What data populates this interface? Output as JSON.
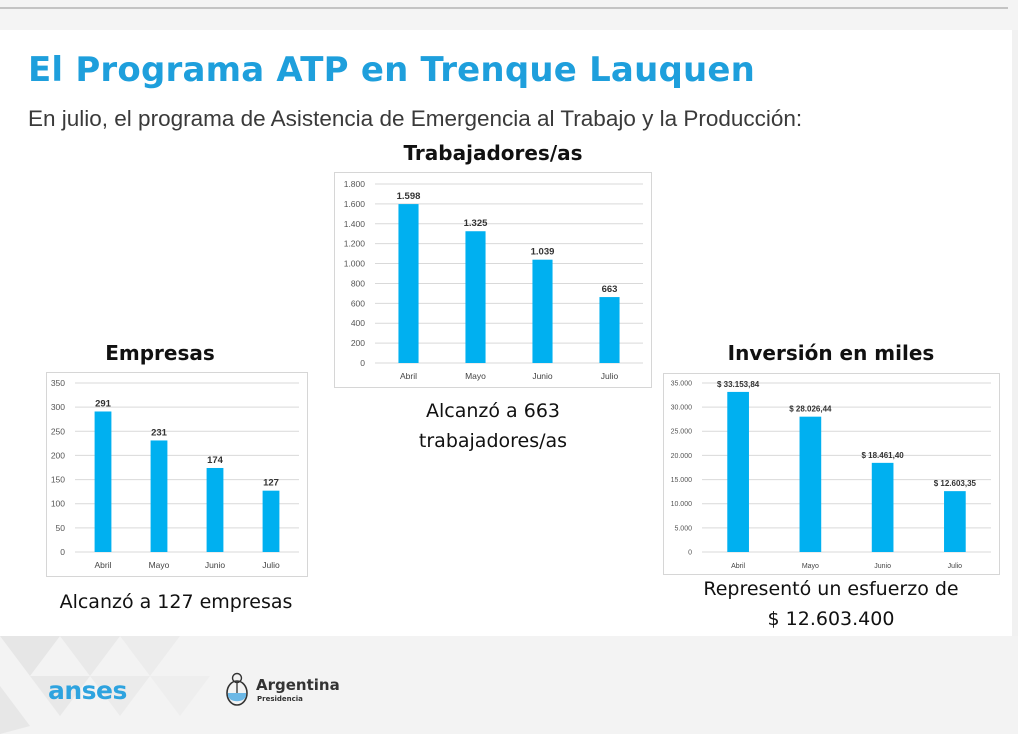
{
  "slide": {
    "title": "El Programa ATP en Trenque Lauquen",
    "subtitle": "En julio, el programa de Asistencia de Emergencia al Trabajo y la Producción:"
  },
  "captions": {
    "workers": [
      "Alcanzó a 663",
      "trabajadores/as"
    ],
    "companies": "Alcanzó a 127 empresas",
    "investment": [
      "Representó un esfuerzo de",
      "$ 12.603.400"
    ]
  },
  "footer": {
    "brand": "anses",
    "gov_name": "Argentina",
    "gov_sub": "Presidencia"
  },
  "colors": {
    "accent": "#1e9fdc",
    "bar": "#00b0f0",
    "brand": "#2ea3df"
  },
  "chart_data": [
    {
      "id": "workers",
      "type": "bar",
      "title": "Trabajadores/as",
      "categories": [
        "Abril",
        "Mayo",
        "Junio",
        "Julio"
      ],
      "values": [
        1598,
        1325,
        1039,
        663
      ],
      "value_labels": [
        "1.598",
        "1.325",
        "1.039",
        "663"
      ],
      "ylim": [
        0,
        1800
      ],
      "yticks": [
        0,
        200,
        400,
        600,
        800,
        1000,
        1200,
        1400,
        1600,
        1800
      ],
      "ytick_labels": [
        "0",
        "200",
        "400",
        "600",
        "800",
        "1.000",
        "1.200",
        "1.400",
        "1.600",
        "1.800"
      ],
      "grid": true,
      "legend": "none"
    },
    {
      "id": "companies",
      "type": "bar",
      "title": "Empresas",
      "categories": [
        "Abril",
        "Mayo",
        "Junio",
        "Julio"
      ],
      "values": [
        291,
        231,
        174,
        127
      ],
      "value_labels": [
        "291",
        "231",
        "174",
        "127"
      ],
      "ylim": [
        0,
        350
      ],
      "yticks": [
        0,
        50,
        100,
        150,
        200,
        250,
        300,
        350
      ],
      "ytick_labels": [
        "0",
        "50",
        "100",
        "150",
        "200",
        "250",
        "300",
        "350"
      ],
      "grid": true,
      "legend": "none"
    },
    {
      "id": "investment",
      "type": "bar",
      "title": "Inversión en miles",
      "categories": [
        "Abril",
        "Mayo",
        "Junio",
        "Julio"
      ],
      "values": [
        33153.84,
        28026.44,
        18461.4,
        12603.35
      ],
      "value_labels": [
        "$ 33.153,84",
        "$ 28.026,44",
        "$ 18.461,40",
        "$ 12.603,35"
      ],
      "ylim": [
        0,
        35000
      ],
      "yticks": [
        0,
        5000,
        10000,
        15000,
        20000,
        25000,
        30000,
        35000
      ],
      "ytick_labels": [
        "0",
        "5.000",
        "10.000",
        "15.000",
        "20.000",
        "25.000",
        "30.000",
        "35.000"
      ],
      "grid": true,
      "legend": "none"
    }
  ]
}
